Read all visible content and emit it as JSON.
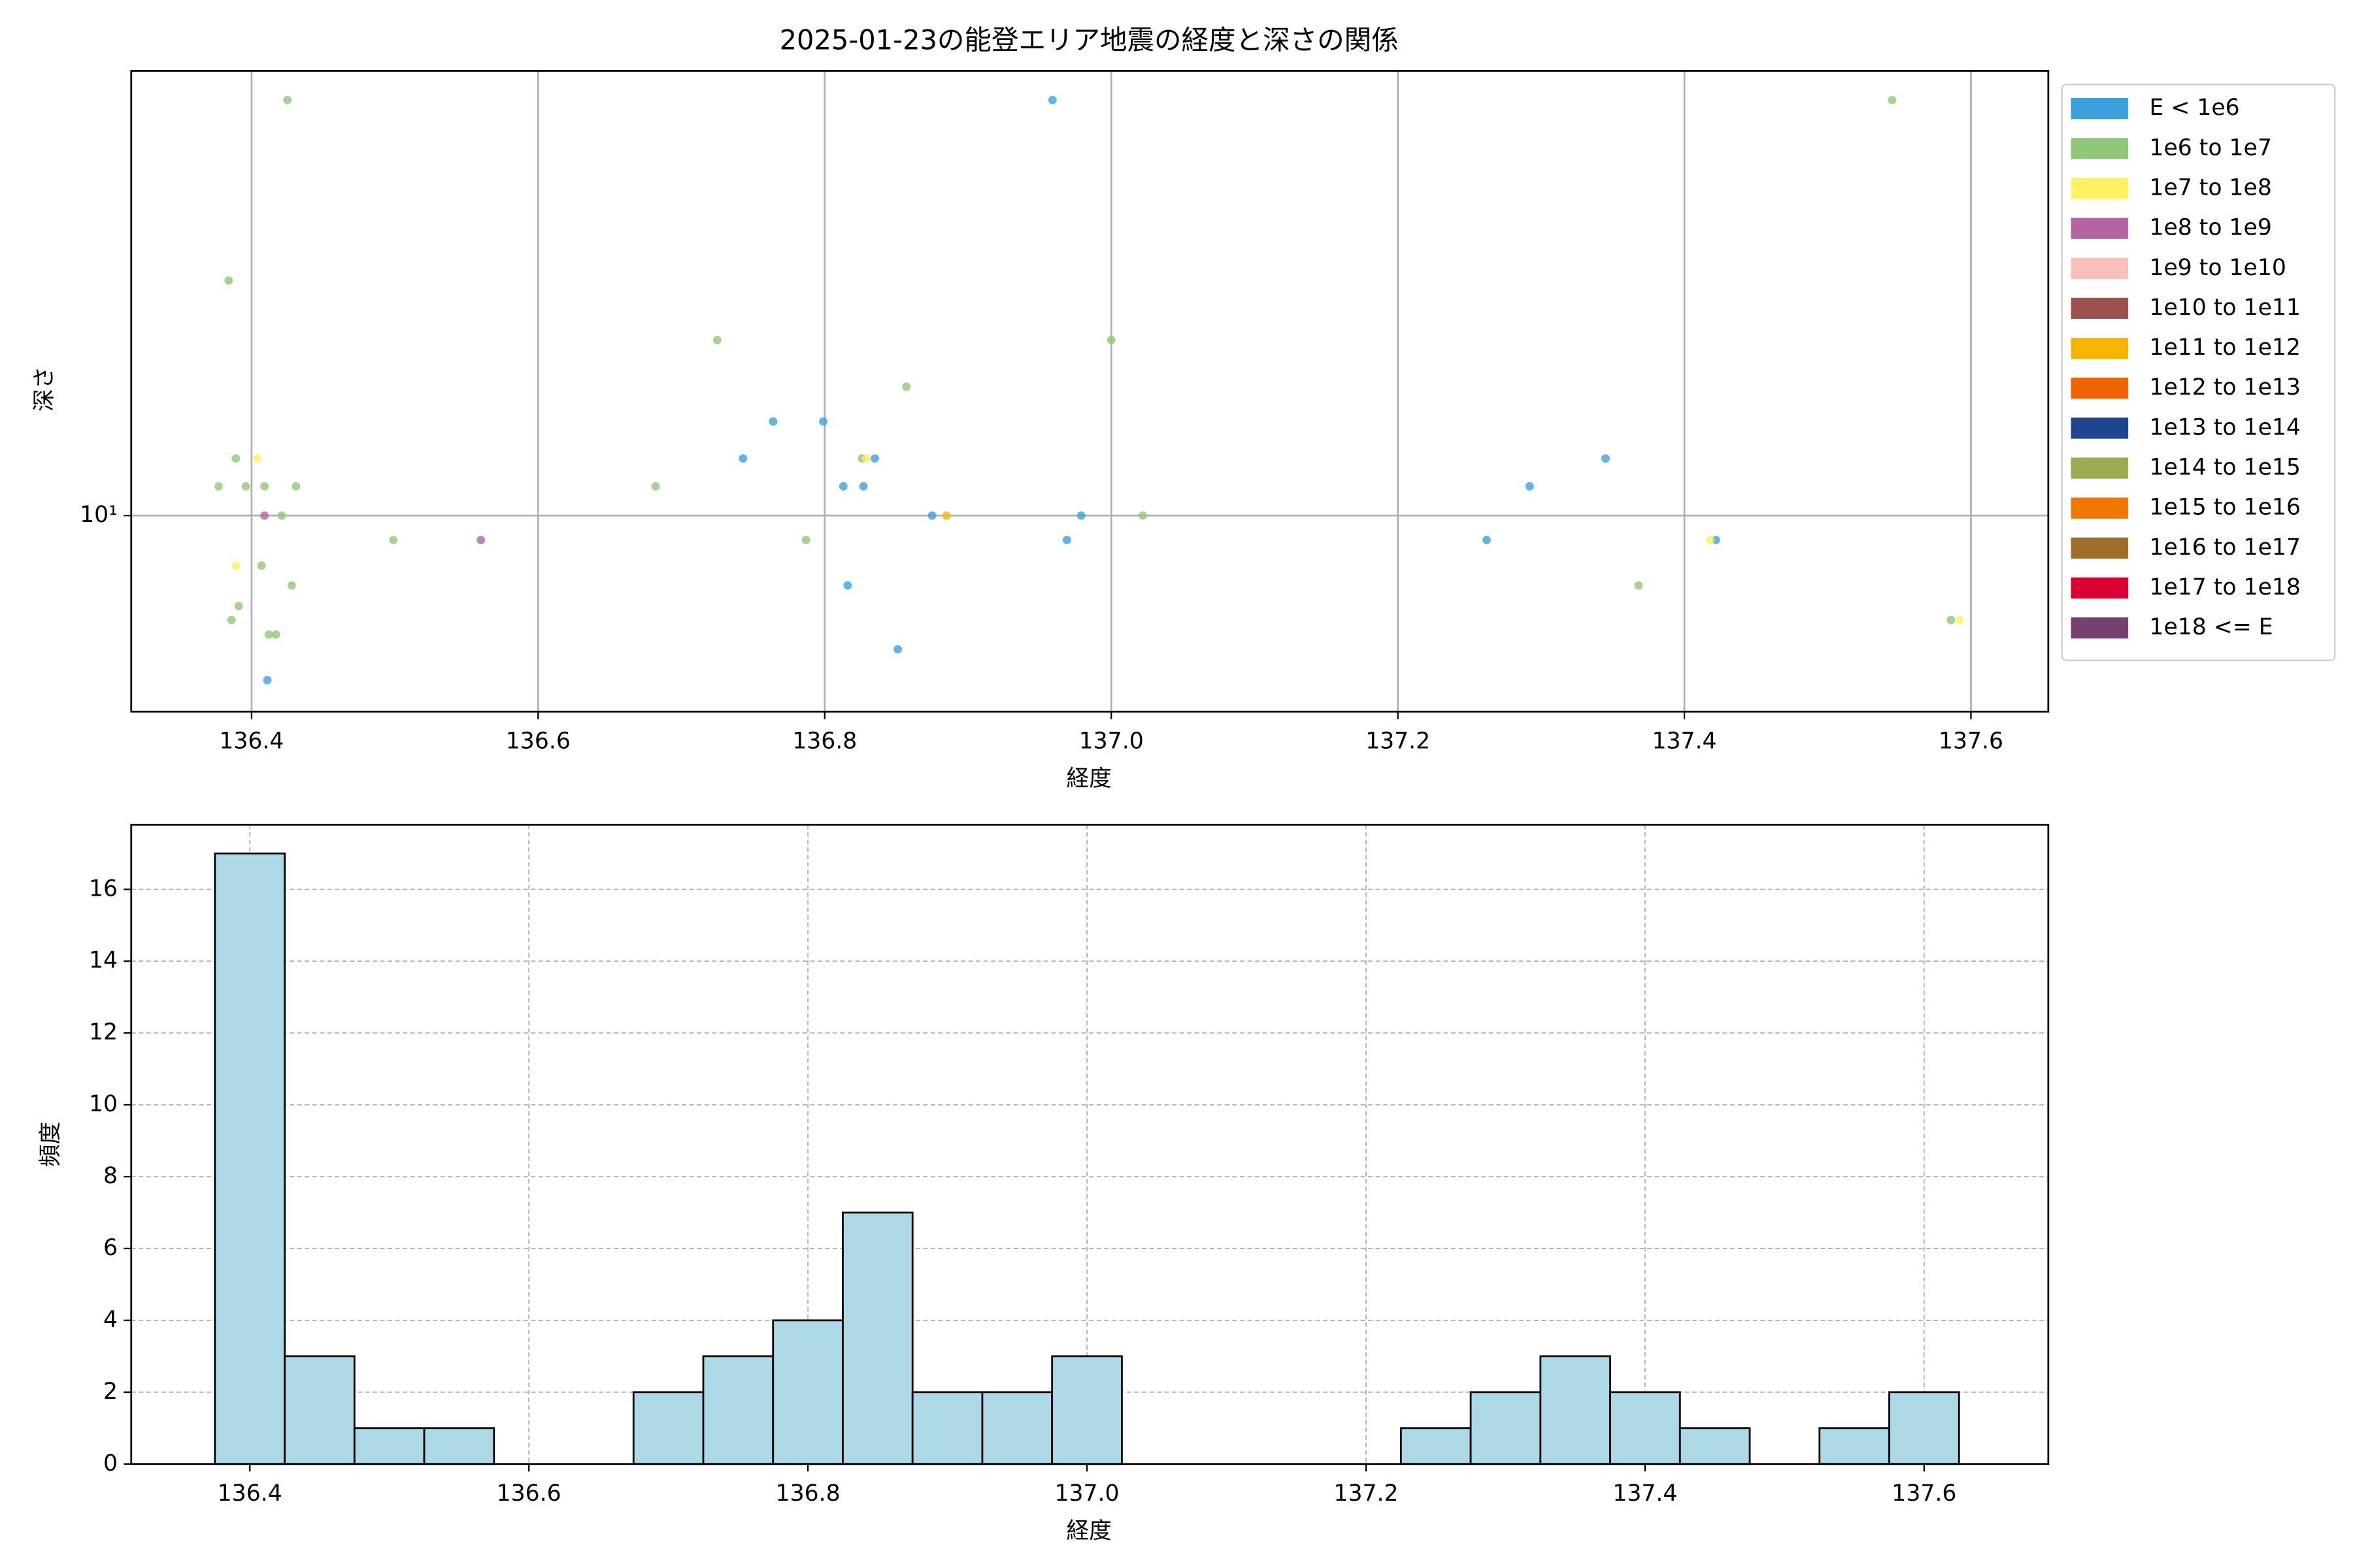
{
  "chart_data": [
    {
      "type": "scatter",
      "title": "2025-01-23の能登エリア地震の経度と深さの関係",
      "xlabel": "経度",
      "ylabel": "深さ",
      "xlim": [
        136.316,
        137.654
      ],
      "xticks": [
        136.4,
        136.6,
        136.8,
        {
          "value": 137,
          "label": "137.0"
        },
        137.2,
        137.4,
        137.6
      ],
      "ylim": [
        7.21,
        21.0
      ],
      "yticks": [
        {
          "value": 10,
          "label": "10¹"
        }
      ],
      "log_y": true,
      "grid": true,
      "legend": "outside-right",
      "series": [
        {
          "name": "E < 1e6",
          "color": "#3ca0dc",
          "x": [
            136.959,
            136.764,
            136.799,
            136.743,
            136.835,
            136.813,
            136.827,
            136.875,
            136.979,
            136.969,
            136.816,
            136.851,
            136.411,
            137.345,
            137.292,
            137.262,
            137.422
          ],
          "y": [
            20.0,
            11.7,
            11.7,
            11.0,
            11.0,
            10.5,
            10.5,
            10,
            10,
            9.6,
            8.9,
            8.0,
            7.6,
            11.0,
            10.5,
            9.6,
            9.6
          ]
        },
        {
          "name": "1e6 to 1e7",
          "color": "#90c878",
          "x": [
            136.425,
            136.384,
            136.725,
            137.0,
            136.857,
            136.389,
            136.377,
            136.396,
            136.409,
            136.431,
            136.682,
            136.421,
            136.499,
            136.787,
            137.022,
            136.407,
            136.428,
            136.391,
            136.386,
            136.412,
            136.417,
            137.368,
            137.545,
            137.586,
            136.826
          ],
          "y": [
            20.0,
            14.8,
            13.4,
            13.4,
            12.4,
            11.0,
            10.5,
            10.5,
            10.5,
            10.5,
            10.5,
            10,
            9.6,
            9.6,
            10,
            9.2,
            8.9,
            8.6,
            8.4,
            8.2,
            8.2,
            8.9,
            20.0,
            8.4,
            11.0
          ]
        },
        {
          "name": "1e7 to 1e8",
          "color": "#fff064",
          "x": [
            136.404,
            136.389,
            136.829,
            137.418,
            137.592
          ],
          "y": [
            11.0,
            9.2,
            11.0,
            9.6,
            8.4
          ]
        },
        {
          "name": "1e8 to 1e9",
          "color": "#b464a0",
          "x": [
            136.409,
            136.56
          ],
          "y": [
            10,
            9.6
          ]
        },
        {
          "name": "1e9 to 1e10",
          "color": "#f8c0b8",
          "x": [],
          "y": []
        },
        {
          "name": "1e10 to 1e11",
          "color": "#9c5050",
          "x": [],
          "y": []
        },
        {
          "name": "1e11 to 1e12",
          "color": "#f8b400",
          "x": [
            136.885
          ],
          "y": [
            10
          ]
        },
        {
          "name": "1e12 to 1e13",
          "color": "#f06400",
          "x": [],
          "y": []
        },
        {
          "name": "1e13 to 1e14",
          "color": "#1e4690",
          "x": [],
          "y": []
        },
        {
          "name": "1e14 to 1e15",
          "color": "#9cac50",
          "x": [],
          "y": []
        },
        {
          "name": "1e15 to 1e16",
          "color": "#f07800",
          "x": [],
          "y": []
        },
        {
          "name": "1e16 to 1e17",
          "color": "#9c6e28",
          "x": [],
          "y": []
        },
        {
          "name": "1e17 to 1e18",
          "color": "#dc0032",
          "x": [],
          "y": []
        },
        {
          "name": "1e18 <= E",
          "color": "#784070",
          "x": [],
          "y": []
        }
      ]
    },
    {
      "type": "histogram",
      "xlabel": "経度",
      "ylabel": "頻度",
      "color": "#add8e6",
      "edgecolor": "#000000",
      "bins": [
        136.375,
        136.425,
        136.475,
        136.525,
        136.575,
        136.625,
        136.675,
        136.725,
        136.775,
        136.825,
        136.875,
        136.925,
        136.975,
        137.025,
        137.075,
        137.125,
        137.175,
        137.225,
        137.275,
        137.325,
        137.375,
        137.425,
        137.475,
        137.525,
        137.575,
        137.625
      ],
      "values": [
        17,
        3,
        1,
        1,
        0,
        0,
        2,
        3,
        4,
        7,
        2,
        2,
        3,
        0,
        0,
        0,
        0,
        1,
        2,
        3,
        2,
        1,
        0,
        1,
        2
      ],
      "xlim": [
        136.315,
        137.689
      ],
      "xticks": [
        136.4,
        136.6,
        136.8,
        {
          "value": 137,
          "label": "137.0"
        },
        137.2,
        137.4,
        137.6
      ],
      "ylim": [
        0,
        17.8
      ],
      "yticks": [
        0,
        2,
        4,
        6,
        8,
        10,
        12,
        14,
        16
      ],
      "grid": true
    }
  ]
}
